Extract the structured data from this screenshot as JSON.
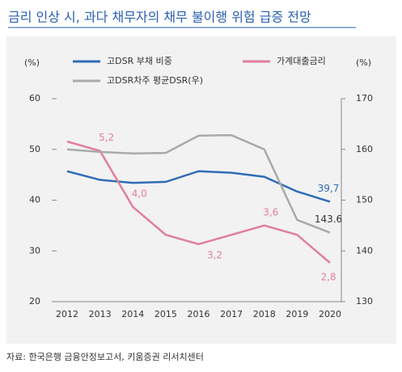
{
  "chart_data": {
    "type": "line",
    "title": "금리 인상 시, 과다 채무자의 채무 불이행 위험 급증 전망",
    "y_unit": "(%)",
    "y2_unit": "(%)",
    "categories": [
      "2012",
      "2013",
      "2014",
      "2015",
      "2016",
      "2017",
      "2018",
      "2019",
      "2020"
    ],
    "ylim": [
      20,
      60
    ],
    "yticks": [
      20,
      30,
      40,
      50,
      60
    ],
    "y2lim": [
      130,
      170
    ],
    "y2ticks": [
      130,
      140,
      150,
      160,
      170
    ],
    "series": [
      {
        "name": "고DSR 부채 비중",
        "color": "#2f6db5",
        "axis": "y",
        "values": [
          45.7,
          44.0,
          43.4,
          43.6,
          45.7,
          45.4,
          44.6,
          41.7,
          39.7
        ],
        "value_labels": [
          null,
          null,
          null,
          null,
          null,
          null,
          null,
          null,
          "39,7"
        ]
      },
      {
        "name": "가계대출금리",
        "color": "#e07f9c",
        "axis": "hidden",
        "values": [
          5.4,
          5.2,
          4.0,
          3.4,
          3.2,
          3.4,
          3.6,
          3.4,
          2.8
        ],
        "value_labels": [
          null,
          "5,2",
          "4,0",
          null,
          "3,2",
          null,
          "3,6",
          null,
          "2,8"
        ]
      },
      {
        "name": "고DSR차주 평균DSR(우)",
        "color": "#aaaaaa",
        "axis": "y2",
        "values": [
          160.0,
          159.5,
          159.2,
          159.3,
          162.7,
          162.8,
          160.0,
          146.1,
          143.6
        ],
        "value_labels": [
          null,
          null,
          null,
          null,
          null,
          null,
          null,
          null,
          "143.6"
        ]
      }
    ],
    "source": "자료: 한국은행 금융안정보고서, 키움증권 리서치센터"
  }
}
